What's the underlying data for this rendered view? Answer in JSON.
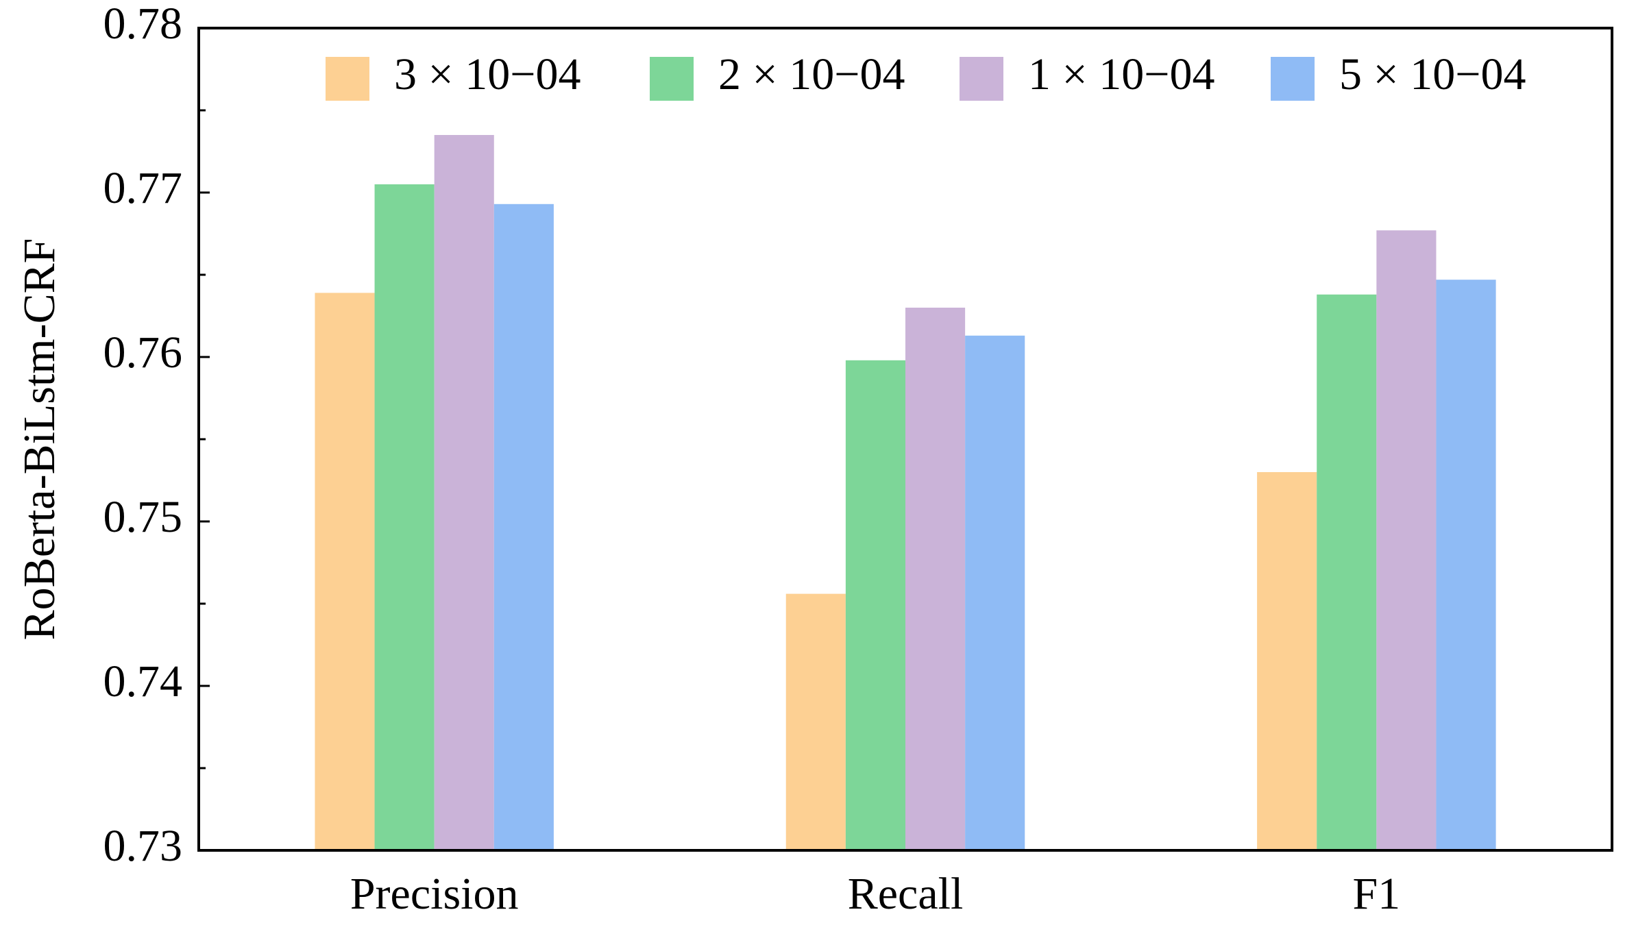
{
  "chart_data": {
    "type": "bar",
    "y_label": "RoBerta-BiLstm-CRF",
    "categories": [
      "Precision",
      "Recall",
      "F1"
    ],
    "series": [
      {
        "name": "3 × 10−04",
        "color": "#fdd093",
        "values": [
          0.7639,
          0.7456,
          0.753
        ]
      },
      {
        "name": "2 × 10−04",
        "color": "#7dd698",
        "values": [
          0.7705,
          0.7598,
          0.7638
        ]
      },
      {
        "name": "1 × 10−04",
        "color": "#cab3d8",
        "values": [
          0.7735,
          0.763,
          0.7677
        ]
      },
      {
        "name": "5 × 10−04",
        "color": "#8fbbf5",
        "values": [
          0.7693,
          0.7613,
          0.7647
        ]
      }
    ],
    "ylim": [
      0.73,
      0.78
    ],
    "yticks": [
      0.73,
      0.74,
      0.75,
      0.76,
      0.77,
      0.78
    ],
    "yminorticks": [
      0.735,
      0.745,
      0.755,
      0.765,
      0.775
    ],
    "grid": false,
    "legend": "top"
  }
}
